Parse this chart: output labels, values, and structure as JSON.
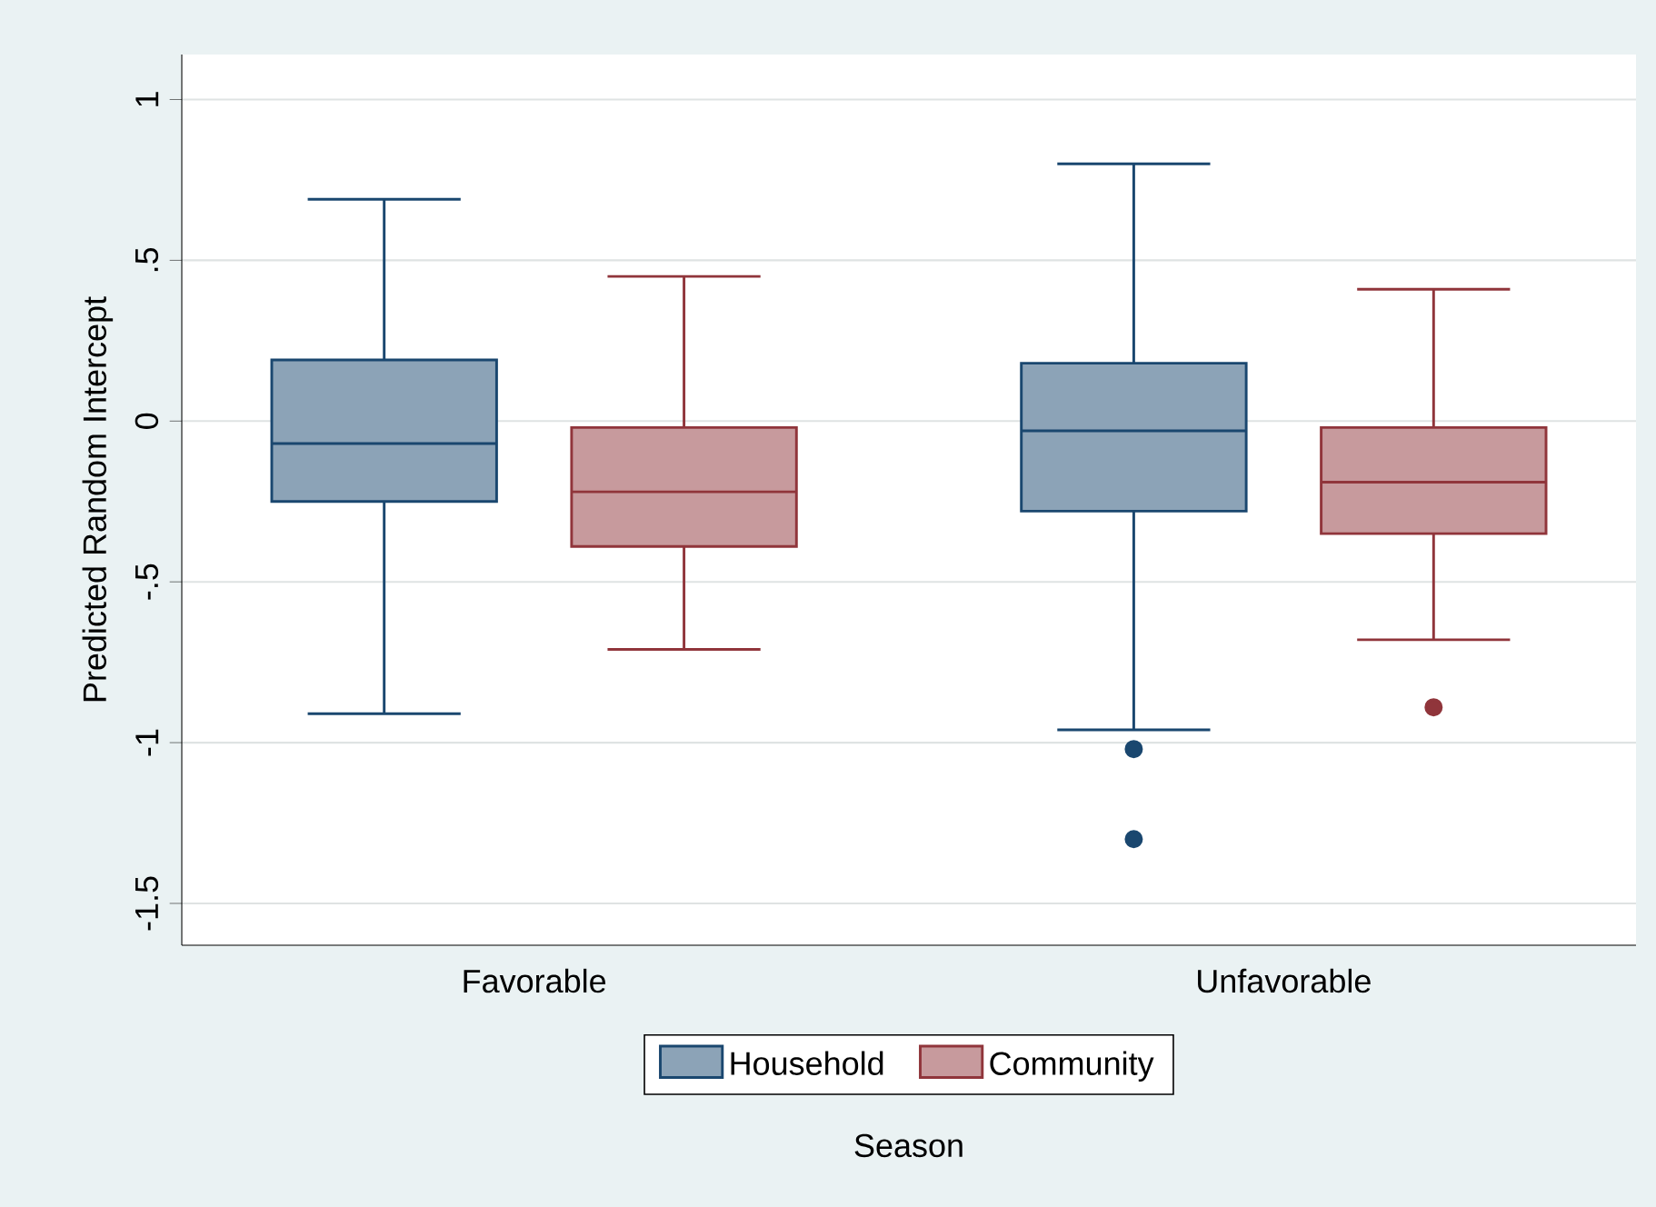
{
  "chart_data": {
    "type": "box",
    "xlabel": "Season",
    "ylabel": "Predicted Random Intercept",
    "categories": [
      "Favorable",
      "Unfavorable"
    ],
    "series": [
      {
        "name": "Household",
        "color": "#1a476f",
        "boxes": [
          {
            "low": -0.91,
            "q1": -0.25,
            "median": -0.07,
            "q3": 0.19,
            "high": 0.69
          },
          {
            "low": -0.96,
            "q1": -0.28,
            "median": -0.03,
            "q3": 0.18,
            "high": 0.8,
            "outliers": [
              -1.02,
              -1.3
            ]
          }
        ]
      },
      {
        "name": "Community",
        "color": "#90353b",
        "boxes": [
          {
            "low": -0.71,
            "q1": -0.39,
            "median": -0.22,
            "q3": -0.02,
            "high": 0.45
          },
          {
            "low": -0.68,
            "q1": -0.35,
            "median": -0.19,
            "q3": -0.02,
            "high": 0.41,
            "outliers": [
              -0.89
            ]
          }
        ]
      }
    ],
    "ylim": [
      -1.63,
      1.14
    ],
    "yticks": [
      {
        "value": -1.5,
        "label": "-1.5"
      },
      {
        "value": -1,
        "label": "-1"
      },
      {
        "value": -0.5,
        "label": "-.5"
      },
      {
        "value": 0,
        "label": "0"
      },
      {
        "value": 0.5,
        "label": ".5"
      },
      {
        "value": 1,
        "label": "1"
      }
    ],
    "grid": "y",
    "legend": "bottom"
  }
}
